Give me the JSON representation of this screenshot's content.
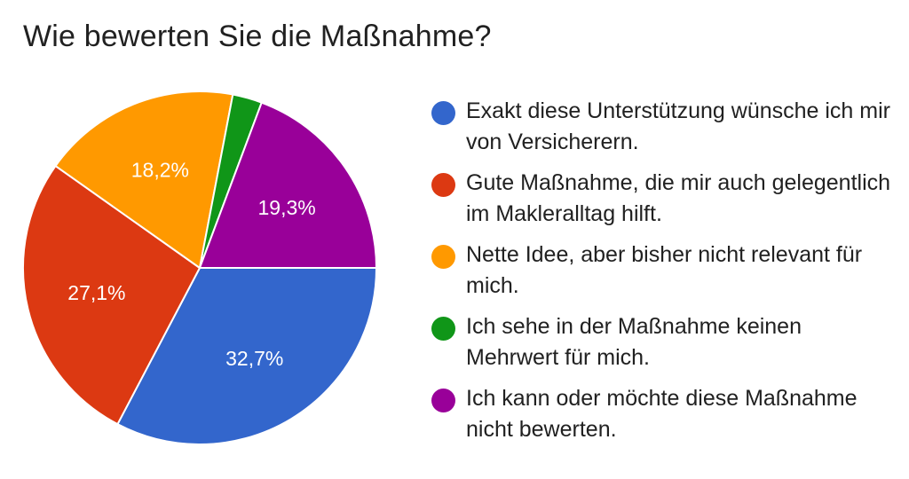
{
  "chart_data": {
    "type": "pie",
    "title": "Wie bewerten Sie die Maßnahme?",
    "slices": [
      {
        "label": "Exakt diese Unterstützung wünsche ich mir von Versicherern.",
        "value": 32.7,
        "display": "32,7%",
        "color": "#3366cc"
      },
      {
        "label": "Gute Maßnahme, die mir auch gelegentlich im Makleralltag hilft.",
        "value": 27.1,
        "display": "27,1%",
        "color": "#dc3912"
      },
      {
        "label": "Nette Idee, aber bisher nicht relevant für mich.",
        "value": 18.2,
        "display": "18,2%",
        "color": "#ff9900"
      },
      {
        "label": "Ich sehe in der Maßnahme keinen Mehrwert für mich.",
        "value": 2.7,
        "display": "",
        "color": "#109618"
      },
      {
        "label": "Ich kann oder möchte diese Maßnahme nicht bewerten.",
        "value": 19.3,
        "display": "19,3%",
        "color": "#990099"
      }
    ],
    "legend_position": "right"
  }
}
